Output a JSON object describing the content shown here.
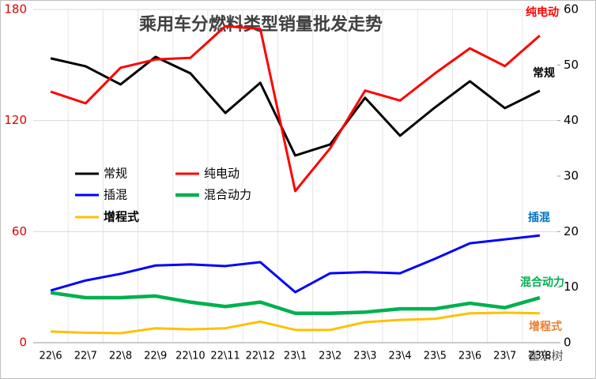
{
  "chart_data": {
    "type": "line",
    "title": "乘用车分燃料类型销量批发走势",
    "categories": [
      "22\\6",
      "22\\7",
      "22\\8",
      "22\\9",
      "22\\10",
      "22\\11",
      "22\\12",
      "23\\1",
      "23\\2",
      "23\\3",
      "23\\4",
      "23\\5",
      "23\\6",
      "23\\7",
      "23\\8"
    ],
    "ylim": [
      0,
      180
    ],
    "yticks": [
      0,
      60,
      120,
      180
    ],
    "y2lim": [
      0,
      60
    ],
    "y2ticks": [
      0,
      10,
      20,
      30,
      40,
      50,
      60
    ],
    "grid": true,
    "series": [
      {
        "name": "常规",
        "color": "#000000",
        "axis": "y",
        "values": [
          153.6,
          149.3,
          139.5,
          154.4,
          145.5,
          124.1,
          140.4,
          101.1,
          107.1,
          132.3,
          111.8,
          127.1,
          141.2,
          126.7,
          136.1
        ]
      },
      {
        "name": "纯电动",
        "color": "#ff0000",
        "axis": "y2",
        "values": [
          45.2,
          43.1,
          49.5,
          51.0,
          51.3,
          57.0,
          56.5,
          27.3,
          35.0,
          45.4,
          43.6,
          48.5,
          53.0,
          49.8,
          55.3
        ]
      },
      {
        "name": "插混",
        "color": "#0000ff",
        "axis": "y2",
        "values": [
          9.4,
          11.2,
          12.4,
          13.9,
          14.1,
          13.8,
          14.5,
          9.1,
          12.5,
          12.7,
          12.5,
          15.1,
          17.9,
          18.6,
          19.3
        ]
      },
      {
        "name": "混合动力",
        "color": "#00b050",
        "axis": "y2",
        "values": [
          9.0,
          8.1,
          8.1,
          8.4,
          7.3,
          6.5,
          7.3,
          5.3,
          5.3,
          5.5,
          6.1,
          6.1,
          7.1,
          6.3,
          8.1
        ]
      },
      {
        "name": "增程式",
        "color": "#ffc000",
        "axis": "y2",
        "values": [
          2.0,
          1.8,
          1.7,
          2.6,
          2.4,
          2.6,
          3.8,
          2.3,
          2.3,
          3.7,
          4.1,
          4.3,
          5.3,
          5.4,
          5.3
        ]
      }
    ],
    "annotations": [
      {
        "text": "纯电动",
        "color": "#ff0000"
      },
      {
        "text": "常规",
        "color": "#000000"
      },
      {
        "text": "插混",
        "color": "#0070c0"
      },
      {
        "text": "混合动力",
        "color": "#00b050"
      },
      {
        "text": "增程式",
        "color": "#ed7d31"
      }
    ],
    "watermark": "崔东树"
  }
}
